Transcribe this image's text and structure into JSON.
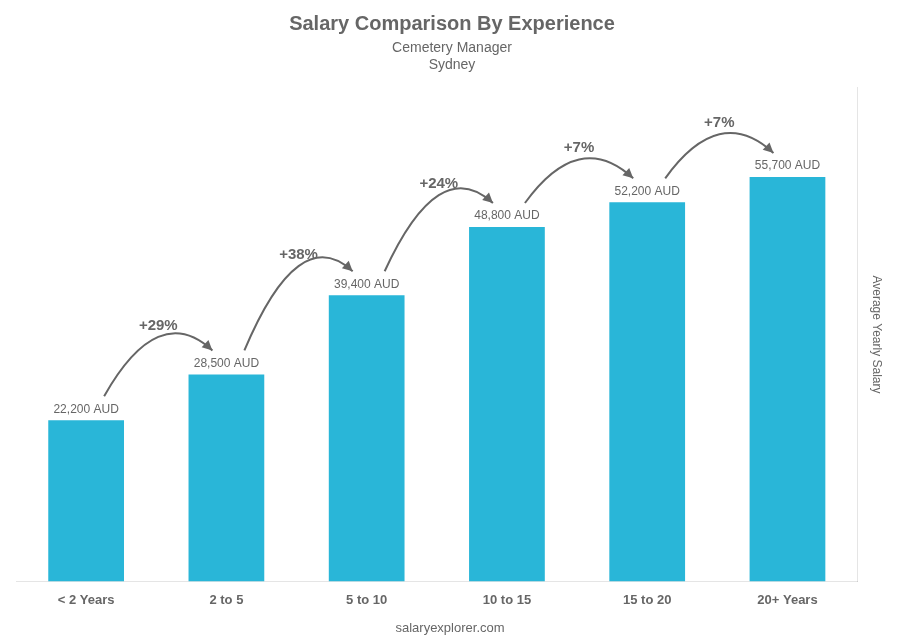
{
  "chart_data": {
    "type": "bar",
    "title": "Salary Comparison By Experience",
    "subtitle": [
      "Cemetery Manager",
      "Sydney"
    ],
    "y_label": "Average Yearly Salary",
    "footer": "salaryexplorer.com",
    "categories": [
      "< 2 Years",
      "2 to 5",
      "5 to 10",
      "10 to 15",
      "15 to 20",
      "20+ Years"
    ],
    "values": [
      22200,
      28500,
      39400,
      48800,
      52200,
      55700
    ],
    "value_labels": [
      "22,200 AUD",
      "28,500 AUD",
      "39,400 AUD",
      "48,800 AUD",
      "52,200 AUD",
      "55,700 AUD"
    ],
    "data_labels": true,
    "annotations": [
      "+29%",
      "+38%",
      "+24%",
      "+7%",
      "+7%"
    ],
    "color": "#29b6d8",
    "ylim": [
      0,
      68000
    ],
    "grid": false,
    "tick_labels": "x"
  }
}
